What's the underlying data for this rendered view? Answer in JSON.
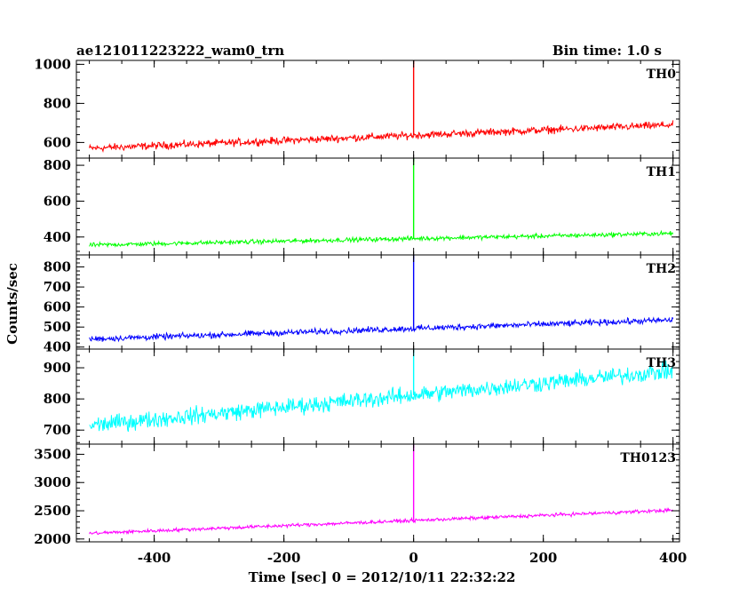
{
  "chart_data": {
    "type": "line",
    "title": "ae121011223222_wam0_trn",
    "bin_time_label": "Bin time: 1.0 s",
    "xlabel": "Time [sec] 0 = 2012/10/11 22:32:22",
    "ylabel": "Counts/sec",
    "xlim": [
      -520,
      410
    ],
    "x_ticks": [
      -400,
      -200,
      0,
      200,
      400
    ],
    "data_x_range": [
      -500,
      400
    ],
    "grid": false,
    "panels": [
      {
        "name": "TH0",
        "color": "#ff0000",
        "ylim": [
          520,
          1020
        ],
        "y_ticks": [
          600,
          800,
          1000
        ],
        "baseline_start": 570,
        "baseline_end": 690,
        "noise_amplitude": 28,
        "spike": {
          "x": 0,
          "y": 1020
        }
      },
      {
        "name": "TH1",
        "color": "#00ff00",
        "ylim": [
          300,
          840
        ],
        "y_ticks": [
          400,
          600,
          800
        ],
        "baseline_start": 355,
        "baseline_end": 420,
        "noise_amplitude": 18,
        "spike": {
          "x": 0,
          "y": 840
        }
      },
      {
        "name": "TH2",
        "color": "#0000ff",
        "ylim": [
          390,
          860
        ],
        "y_ticks": [
          400,
          500,
          600,
          700,
          800
        ],
        "baseline_start": 440,
        "baseline_end": 535,
        "noise_amplitude": 22,
        "spike": {
          "x": 0,
          "y": 860
        }
      },
      {
        "name": "TH3",
        "color": "#00ffff",
        "ylim": [
          655,
          960
        ],
        "y_ticks": [
          700,
          800,
          900
        ],
        "baseline_start": 715,
        "baseline_end": 890,
        "noise_amplitude": 40,
        "spike": {
          "x": 0,
          "y": 960
        }
      },
      {
        "name": "TH0123",
        "color": "#ff00ff",
        "ylim": [
          1950,
          3680
        ],
        "y_ticks": [
          2000,
          2500,
          3000,
          3500
        ],
        "baseline_start": 2100,
        "baseline_end": 2510,
        "noise_amplitude": 45,
        "spike": {
          "x": 0,
          "y": 3680
        }
      }
    ]
  }
}
